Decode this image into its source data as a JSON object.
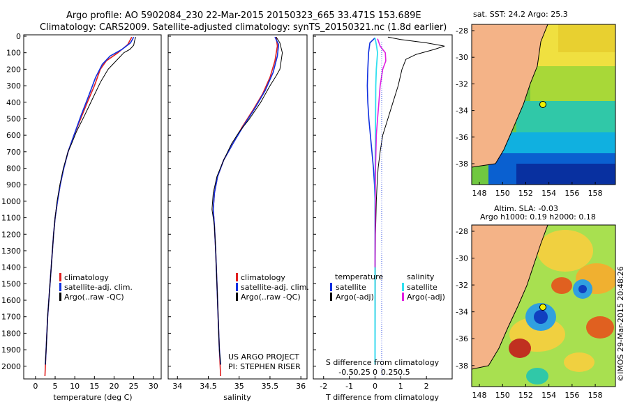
{
  "header": {
    "line1": "Argo profile: AO 5902084_230 22-Mar-2015 20150323_665 33.471S 153.689E",
    "line2": "Climatology: CARS2009. Satellite-adjusted climatology: synTS_20150321.nc (1.8d earlier)"
  },
  "colors": {
    "climatology": "#e02020",
    "satellite": "#1030e0",
    "argo": "#000000",
    "sal_satellite": "#30e0f0",
    "sal_argo": "#e020e0",
    "land": "#f4b387"
  },
  "chart_data": [
    {
      "type": "line",
      "panel": "temperature",
      "xlabel": "temperature (deg C)",
      "x_ticks": [
        "0",
        "5",
        "10",
        "15",
        "20",
        "25",
        "30"
      ],
      "xlim": [
        -3,
        32
      ],
      "y_ticks": [
        "0",
        "100",
        "200",
        "300",
        "400",
        "500",
        "600",
        "700",
        "800",
        "900",
        "1000",
        "1100",
        "1200",
        "1300",
        "1400",
        "1500",
        "1600",
        "1700",
        "1800",
        "1900",
        "2000"
      ],
      "ylim": [
        0,
        2060
      ],
      "legend": [
        "climatology",
        "satellite-adj. clim.",
        "Argo(..raw -QC)"
      ],
      "series": [
        {
          "name": "climatology",
          "color": "#e02020",
          "width": 1.6,
          "points": [
            [
              24.5,
              5
            ],
            [
              23.5,
              50
            ],
            [
              21,
              100
            ],
            [
              18,
              150
            ],
            [
              16.5,
              200
            ],
            [
              15,
              300
            ],
            [
              13.2,
              400
            ],
            [
              11.5,
              500
            ],
            [
              9.8,
              600
            ],
            [
              8.3,
              700
            ],
            [
              7.2,
              800
            ],
            [
              6.3,
              900
            ],
            [
              5.6,
              1000
            ],
            [
              5,
              1100
            ],
            [
              4.6,
              1200
            ],
            [
              4.3,
              1300
            ],
            [
              4,
              1400
            ],
            [
              3.7,
              1500
            ],
            [
              3.4,
              1600
            ],
            [
              3.1,
              1700
            ],
            [
              2.9,
              1800
            ],
            [
              2.7,
              1900
            ],
            [
              2.5,
              2000
            ],
            [
              2.4,
              2060
            ]
          ]
        },
        {
          "name": "satellite-adj. clim.",
          "color": "#1030e0",
          "width": 1.6,
          "points": [
            [
              25,
              5
            ],
            [
              24.2,
              40
            ],
            [
              22,
              80
            ],
            [
              19,
              120
            ],
            [
              17,
              170
            ],
            [
              15.3,
              250
            ],
            [
              13.4,
              370
            ],
            [
              11.6,
              480
            ],
            [
              9.8,
              600
            ],
            [
              8.3,
              700
            ],
            [
              7.2,
              800
            ],
            [
              6.3,
              900
            ],
            [
              5.6,
              1000
            ],
            [
              5,
              1100
            ],
            [
              4.6,
              1200
            ],
            [
              4.3,
              1300
            ],
            [
              4,
              1400
            ],
            [
              3.7,
              1500
            ],
            [
              3.4,
              1600
            ],
            [
              3.1,
              1700
            ],
            [
              2.9,
              1800
            ],
            [
              2.7,
              1900
            ],
            [
              2.5,
              1990
            ]
          ]
        },
        {
          "name": "Argo(..raw -QC)",
          "color": "#000000",
          "width": 1,
          "points": [
            [
              25.5,
              5
            ],
            [
              25.2,
              30
            ],
            [
              25,
              55
            ],
            [
              24,
              80
            ],
            [
              22.5,
              100
            ],
            [
              20.5,
              150
            ],
            [
              18.5,
              200
            ],
            [
              16.5,
              280
            ],
            [
              14.5,
              380
            ],
            [
              12.5,
              480
            ],
            [
              10.4,
              580
            ],
            [
              9.2,
              650
            ],
            [
              8.3,
              700
            ],
            [
              7.1,
              800
            ],
            [
              6.2,
              900
            ],
            [
              5.5,
              1000
            ],
            [
              5,
              1100
            ],
            [
              4.6,
              1200
            ],
            [
              4.3,
              1300
            ],
            [
              4,
              1400
            ],
            [
              3.7,
              1500
            ],
            [
              3.4,
              1600
            ],
            [
              3.1,
              1700
            ],
            [
              2.9,
              1800
            ],
            [
              2.7,
              1900
            ],
            [
              2.5,
              1990
            ]
          ]
        }
      ]
    },
    {
      "type": "line",
      "panel": "salinity",
      "xlabel": "salinity",
      "x_ticks": [
        "34",
        "34.5",
        "35",
        "35.5",
        "36"
      ],
      "xlim": [
        33.85,
        36.1
      ],
      "ylim": [
        0,
        2060
      ],
      "legend": [
        "climatology",
        "satellite-adj. clim.",
        "Argo(..raw -QC)"
      ],
      "annotations": [
        "US ARGO PROJECT",
        "PI: STEPHEN RISER"
      ],
      "series": [
        {
          "name": "climatology",
          "color": "#e02020",
          "width": 1.6,
          "points": [
            [
              35.6,
              5
            ],
            [
              35.62,
              60
            ],
            [
              35.58,
              150
            ],
            [
              35.5,
              250
            ],
            [
              35.38,
              350
            ],
            [
              35.22,
              450
            ],
            [
              35.05,
              550
            ],
            [
              34.9,
              650
            ],
            [
              34.75,
              750
            ],
            [
              34.65,
              850
            ],
            [
              34.6,
              950
            ],
            [
              34.58,
              1050
            ],
            [
              34.6,
              1150
            ],
            [
              34.62,
              1300
            ],
            [
              34.64,
              1500
            ],
            [
              34.66,
              1700
            ],
            [
              34.68,
              1900
            ],
            [
              34.7,
              2060
            ]
          ]
        },
        {
          "name": "satellite-adj. clim.",
          "color": "#1030e0",
          "width": 1.6,
          "points": [
            [
              35.58,
              5
            ],
            [
              35.64,
              50
            ],
            [
              35.62,
              120
            ],
            [
              35.55,
              220
            ],
            [
              35.42,
              330
            ],
            [
              35.25,
              440
            ],
            [
              35.06,
              550
            ],
            [
              34.9,
              650
            ],
            [
              34.75,
              750
            ],
            [
              34.65,
              850
            ],
            [
              34.6,
              950
            ],
            [
              34.58,
              1050
            ],
            [
              34.6,
              1150
            ],
            [
              34.62,
              1300
            ],
            [
              34.64,
              1500
            ],
            [
              34.66,
              1700
            ],
            [
              34.68,
              1900
            ],
            [
              34.7,
              1990
            ]
          ]
        },
        {
          "name": "Argo(..raw -QC)",
          "color": "#000000",
          "width": 1,
          "points": [
            [
              35.6,
              5
            ],
            [
              35.66,
              40
            ],
            [
              35.7,
              100
            ],
            [
              35.68,
              150
            ],
            [
              35.66,
              200
            ],
            [
              35.6,
              240
            ],
            [
              35.5,
              300
            ],
            [
              35.35,
              400
            ],
            [
              35.17,
              500
            ],
            [
              35,
              580
            ],
            [
              34.88,
              650
            ],
            [
              34.75,
              750
            ],
            [
              34.64,
              850
            ],
            [
              34.58,
              950
            ],
            [
              34.56,
              1050
            ],
            [
              34.6,
              1150
            ],
            [
              34.62,
              1300
            ],
            [
              34.64,
              1500
            ],
            [
              34.66,
              1700
            ],
            [
              34.68,
              1900
            ],
            [
              34.7,
              1990
            ]
          ]
        }
      ]
    },
    {
      "type": "line",
      "panel": "difference",
      "xlabel": "T difference from climatology",
      "x_ticks": [
        "-2",
        "-1",
        "0",
        "1",
        "2"
      ],
      "xlim": [
        -2.4,
        3.0
      ],
      "top_label": "S difference from climatology",
      "top_ticks": [
        "-0.5",
        "-0.25",
        "0",
        "0.25",
        "0.5"
      ],
      "ylim": [
        0,
        2060
      ],
      "legend_left": {
        "title": "temperature",
        "items": [
          "satellite",
          "Argo(-adj)"
        ]
      },
      "legend_right": {
        "title": "salinity",
        "items": [
          "satellite",
          "Argo(-adj)"
        ]
      },
      "series": [
        {
          "name": "T satellite",
          "color": "#1030e0",
          "width": 1.6,
          "points": [
            [
              0,
              10
            ],
            [
              -0.2,
              40
            ],
            [
              -0.25,
              100
            ],
            [
              -0.28,
              200
            ],
            [
              -0.3,
              300
            ],
            [
              -0.28,
              400
            ],
            [
              -0.24,
              500
            ],
            [
              -0.18,
              600
            ],
            [
              -0.12,
              700
            ],
            [
              -0.06,
              800
            ],
            [
              -0.02,
              900
            ],
            [
              0,
              1000
            ],
            [
              0,
              1990
            ]
          ]
        },
        {
          "name": "T Argo(-adj)",
          "color": "#000000",
          "width": 1,
          "points": [
            [
              0.5,
              5
            ],
            [
              1,
              20
            ],
            [
              2,
              40
            ],
            [
              2.7,
              60
            ],
            [
              2.3,
              80
            ],
            [
              1.6,
              110
            ],
            [
              1.2,
              140
            ],
            [
              1.05,
              200
            ],
            [
              0.9,
              300
            ],
            [
              0.7,
              400
            ],
            [
              0.5,
              500
            ],
            [
              0.3,
              600
            ],
            [
              0.2,
              700
            ],
            [
              0.12,
              800
            ],
            [
              0.08,
              900
            ],
            [
              0.05,
              1000
            ],
            [
              0.02,
              1200
            ],
            [
              0.01,
              1500
            ],
            [
              0,
              1990
            ]
          ]
        },
        {
          "name": "S satellite",
          "color": "#30e0f0",
          "width": 1.8,
          "points": [
            [
              0,
              10
            ],
            [
              0.05,
              50
            ],
            [
              0.1,
              100
            ],
            [
              0.05,
              200
            ],
            [
              0.03,
              300
            ],
            [
              0.02,
              500
            ],
            [
              0.01,
              700
            ],
            [
              0,
              1000
            ],
            [
              0,
              1990
            ]
          ]
        },
        {
          "name": "S Argo(-adj)",
          "color": "#e020e0",
          "width": 1.6,
          "points": [
            [
              0.1,
              15
            ],
            [
              0.2,
              60
            ],
            [
              0.4,
              100
            ],
            [
              0.42,
              150
            ],
            [
              0.3,
              200
            ],
            [
              0.2,
              300
            ],
            [
              0.15,
              400
            ],
            [
              0.1,
              500
            ],
            [
              0.05,
              600
            ],
            [
              0.02,
              800
            ],
            [
              0.01,
              1000
            ],
            [
              0,
              1400
            ]
          ]
        }
      ]
    }
  ],
  "maps": {
    "sst": {
      "title": "sat. SST: 24.2 Argo: 25.3",
      "x_ticks": [
        "148",
        "150",
        "152",
        "154",
        "156",
        "158"
      ],
      "y_ticks": [
        "-28",
        "-30",
        "-32",
        "-34",
        "-36",
        "-38"
      ]
    },
    "sla": {
      "title": "Altim. SLA: -0.03",
      "subtitle": "Argo h1000: 0.19 h2000: 0.18",
      "x_ticks": [
        "148",
        "150",
        "152",
        "154",
        "156",
        "158"
      ],
      "y_ticks": [
        "-28",
        "-30",
        "-32",
        "-34",
        "-36",
        "-38"
      ]
    },
    "credit": "©IMOS 29-Mar-2015 20:48:26"
  }
}
